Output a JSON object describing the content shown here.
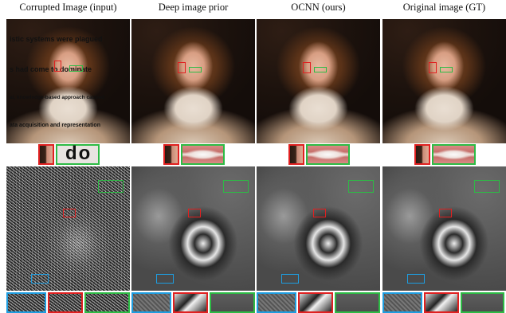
{
  "columns": [
    {
      "title": "Corrupted Image (input)"
    },
    {
      "title": "Deep image prior"
    },
    {
      "title": "OCNN (ours)"
    },
    {
      "title": "Original image (GT)"
    }
  ],
  "corrupted_overlay_text": [
    "istic systems were plagued",
    "s had come to dominate",
    "al, knowledge-based approach caused",
    "ata acquisition and representation"
  ],
  "corrupted_crop_text": "do",
  "colors": {
    "red_box": "#e02020",
    "green_box": "#2dbb45",
    "blue_box": "#1e9de0"
  }
}
